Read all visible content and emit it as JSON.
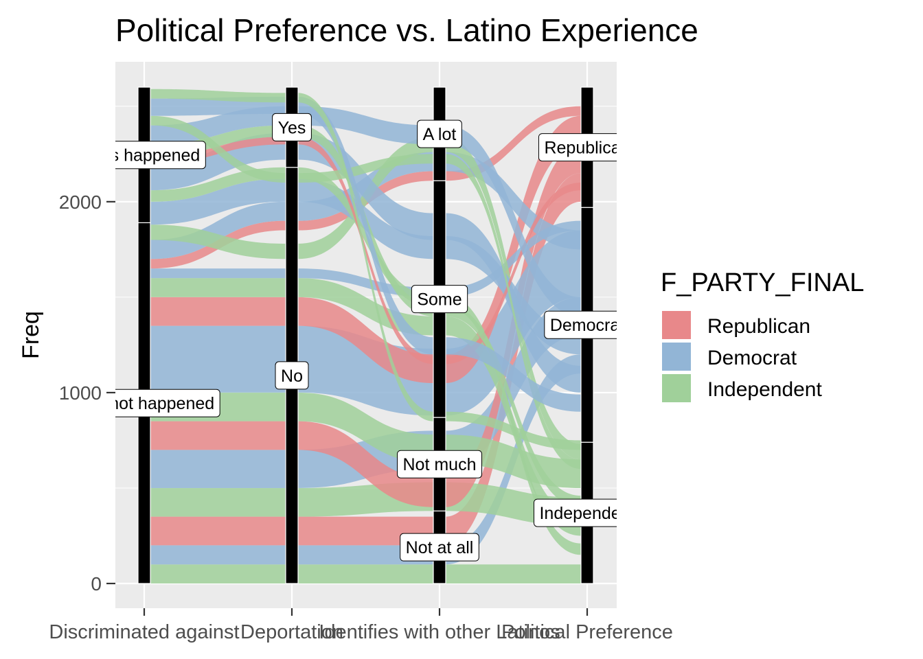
{
  "chart_data": {
    "type": "alluvial",
    "title": "Political Preference vs. Latino Experience",
    "ylabel": "Freq",
    "ylim": [
      0,
      2600
    ],
    "yticks": [
      0,
      1000,
      2000
    ],
    "axes": [
      {
        "label": "Discriminated against",
        "strata": [
          {
            "label": "Has not happened",
            "from": 0,
            "to": 1890
          },
          {
            "label": "Has happened",
            "from": 1890,
            "to": 2600
          }
        ]
      },
      {
        "label": "Deportation",
        "strata": [
          {
            "label": "No",
            "from": 0,
            "to": 2180
          },
          {
            "label": "Yes",
            "from": 2180,
            "to": 2600
          }
        ]
      },
      {
        "label": "Identifies with other Latinos",
        "strata": [
          {
            "label": "Not at all",
            "from": 0,
            "to": 380
          },
          {
            "label": "Not much",
            "from": 380,
            "to": 870
          },
          {
            "label": "Some",
            "from": 870,
            "to": 2110
          },
          {
            "label": "A lot",
            "from": 2110,
            "to": 2600
          }
        ]
      },
      {
        "label": "Political Preference",
        "strata": [
          {
            "label": "Independent",
            "from": 0,
            "to": 740
          },
          {
            "label": "Democrat",
            "from": 740,
            "to": 1970
          },
          {
            "label": "Republican",
            "from": 1970,
            "to": 2600
          }
        ]
      }
    ],
    "legend": {
      "title": "F_PARTY_FINAL",
      "position": "right",
      "entries": [
        {
          "label": "Republican",
          "color": "#e8888a"
        },
        {
          "label": "Democrat",
          "color": "#92b5d6"
        },
        {
          "label": "Independent",
          "color": "#a0d09a"
        }
      ]
    },
    "flows": [
      {
        "party": "I",
        "y": [
          0,
          0,
          0,
          0
        ],
        "h": 100
      },
      {
        "party": "D",
        "y": [
          100,
          100,
          100,
          1100
        ],
        "h": 100
      },
      {
        "party": "R",
        "y": [
          200,
          200,
          200,
          2000
        ],
        "h": 150
      },
      {
        "party": "I",
        "y": [
          350,
          350,
          380,
          300
        ],
        "h": 150
      },
      {
        "party": "D",
        "y": [
          500,
          500,
          600,
          1300
        ],
        "h": 200
      },
      {
        "party": "R",
        "y": [
          700,
          700,
          400,
          2150
        ],
        "h": 150
      },
      {
        "party": "I",
        "y": [
          850,
          850,
          630,
          500
        ],
        "h": 150
      },
      {
        "party": "D",
        "y": [
          1000,
          1000,
          880,
          1500
        ],
        "h": 350
      },
      {
        "party": "R",
        "y": [
          1350,
          1350,
          1050,
          2300
        ],
        "h": 150
      },
      {
        "party": "I",
        "y": [
          1500,
          1500,
          1300,
          250
        ],
        "h": 100
      },
      {
        "party": "D",
        "y": [
          1600,
          1600,
          1500,
          1850
        ],
        "h": 50
      },
      {
        "party": "R",
        "y": [
          1650,
          1850,
          2110,
          2450
        ],
        "h": 50
      },
      {
        "party": "D",
        "y": [
          1700,
          1900,
          2160,
          1750
        ],
        "h": 100
      },
      {
        "party": "I",
        "y": [
          1800,
          1700,
          2260,
          650
        ],
        "h": 80
      },
      {
        "party": "D",
        "y": [
          1880,
          2000,
          1700,
          1200
        ],
        "h": 120
      },
      {
        "party": "I",
        "y": [
          2000,
          2120,
          1450,
          150
        ],
        "h": 60
      },
      {
        "party": "D",
        "y": [
          2060,
          2220,
          1800,
          1000
        ],
        "h": 140
      },
      {
        "party": "R",
        "y": [
          2200,
          2300,
          1150,
          2060
        ],
        "h": 40
      },
      {
        "party": "I",
        "y": [
          2240,
          2340,
          1400,
          400
        ],
        "h": 60
      },
      {
        "party": "D",
        "y": [
          2300,
          2400,
          2300,
          1400
        ],
        "h": 100
      },
      {
        "party": "I",
        "y": [
          2400,
          2100,
          2200,
          600
        ],
        "h": 50
      },
      {
        "party": "D",
        "y": [
          2450,
          2460,
          1200,
          900
        ],
        "h": 90
      },
      {
        "party": "I",
        "y": [
          2540,
          2520,
          850,
          700
        ],
        "h": 50
      }
    ]
  }
}
